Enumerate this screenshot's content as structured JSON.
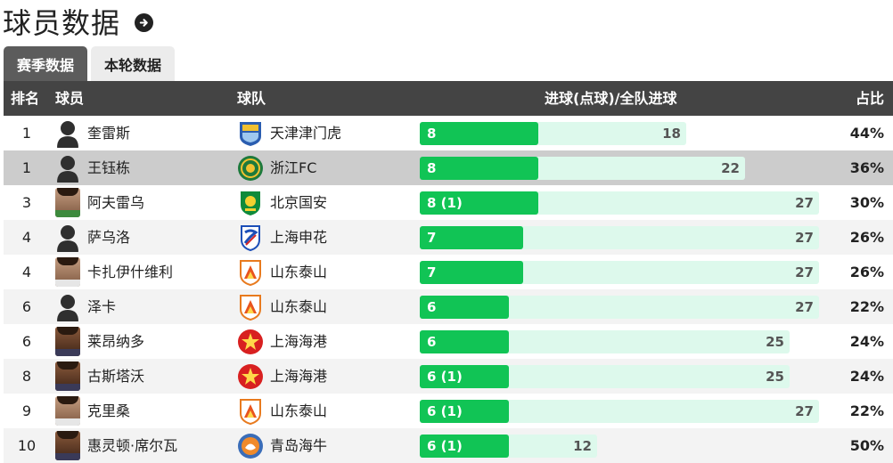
{
  "header": {
    "title": "球员数据"
  },
  "tabs": [
    {
      "label": "赛季数据",
      "active": true
    },
    {
      "label": "本轮数据",
      "active": false
    }
  ],
  "columns": {
    "rank": "排名",
    "player": "球员",
    "team": "球队",
    "goals": "进球(点球)/全队进球",
    "pct": "占比"
  },
  "colors": {
    "header_bg": "#444444",
    "goal_bar": "#11c455",
    "team_bar": "#ddf9ec",
    "tab_active": "#5c5c5c"
  },
  "rows": [
    {
      "rank": "1",
      "player": "奎雷斯",
      "avatar": "silhouette",
      "team": "天津津门虎",
      "team_logo": "tianjin-crest",
      "goals": 8,
      "goals_label": "8",
      "team_goals": 18,
      "team_goals_label": "18",
      "pct": "44%"
    },
    {
      "rank": "1",
      "player": "王钰栋",
      "avatar": "silhouette",
      "team": "浙江FC",
      "team_logo": "zhejiang-crest",
      "goals": 8,
      "goals_label": "8",
      "team_goals": 22,
      "team_goals_label": "22",
      "pct": "36%"
    },
    {
      "rank": "3",
      "player": "阿夫雷乌",
      "avatar": "photo-green",
      "team": "北京国安",
      "team_logo": "beijing-crest",
      "goals": 8,
      "goals_label": "8 (1)",
      "team_goals": 27,
      "team_goals_label": "27",
      "pct": "30%"
    },
    {
      "rank": "4",
      "player": "萨乌洛",
      "avatar": "silhouette",
      "team": "上海申花",
      "team_logo": "shenhua-crest",
      "goals": 7,
      "goals_label": "7",
      "team_goals": 27,
      "team_goals_label": "27",
      "pct": "26%"
    },
    {
      "rank": "4",
      "player": "卡扎伊什维利",
      "avatar": "photo",
      "team": "山东泰山",
      "team_logo": "taishan-crest",
      "goals": 7,
      "goals_label": "7",
      "team_goals": 27,
      "team_goals_label": "27",
      "pct": "26%"
    },
    {
      "rank": "6",
      "player": "泽卡",
      "avatar": "silhouette",
      "team": "山东泰山",
      "team_logo": "taishan-crest",
      "goals": 6,
      "goals_label": "6",
      "team_goals": 27,
      "team_goals_label": "27",
      "pct": "22%"
    },
    {
      "rank": "6",
      "player": "莱昂纳多",
      "avatar": "photo-dark",
      "team": "上海海港",
      "team_logo": "haigang-crest",
      "goals": 6,
      "goals_label": "6",
      "team_goals": 25,
      "team_goals_label": "25",
      "pct": "24%"
    },
    {
      "rank": "8",
      "player": "古斯塔沃",
      "avatar": "photo-dark",
      "team": "上海海港",
      "team_logo": "haigang-crest",
      "goals": 6,
      "goals_label": "6 (1)",
      "team_goals": 25,
      "team_goals_label": "25",
      "pct": "24%"
    },
    {
      "rank": "9",
      "player": "克里桑",
      "avatar": "photo",
      "team": "山东泰山",
      "team_logo": "taishan-crest",
      "goals": 6,
      "goals_label": "6 (1)",
      "team_goals": 27,
      "team_goals_label": "27",
      "pct": "22%"
    },
    {
      "rank": "10",
      "player": "惠灵顿·席尔瓦",
      "avatar": "photo-dark",
      "team": "青岛海牛",
      "team_logo": "qingdao-crest",
      "goals": 6,
      "goals_label": "6 (1)",
      "team_goals": 12,
      "team_goals_label": "12",
      "pct": "50%"
    }
  ]
}
